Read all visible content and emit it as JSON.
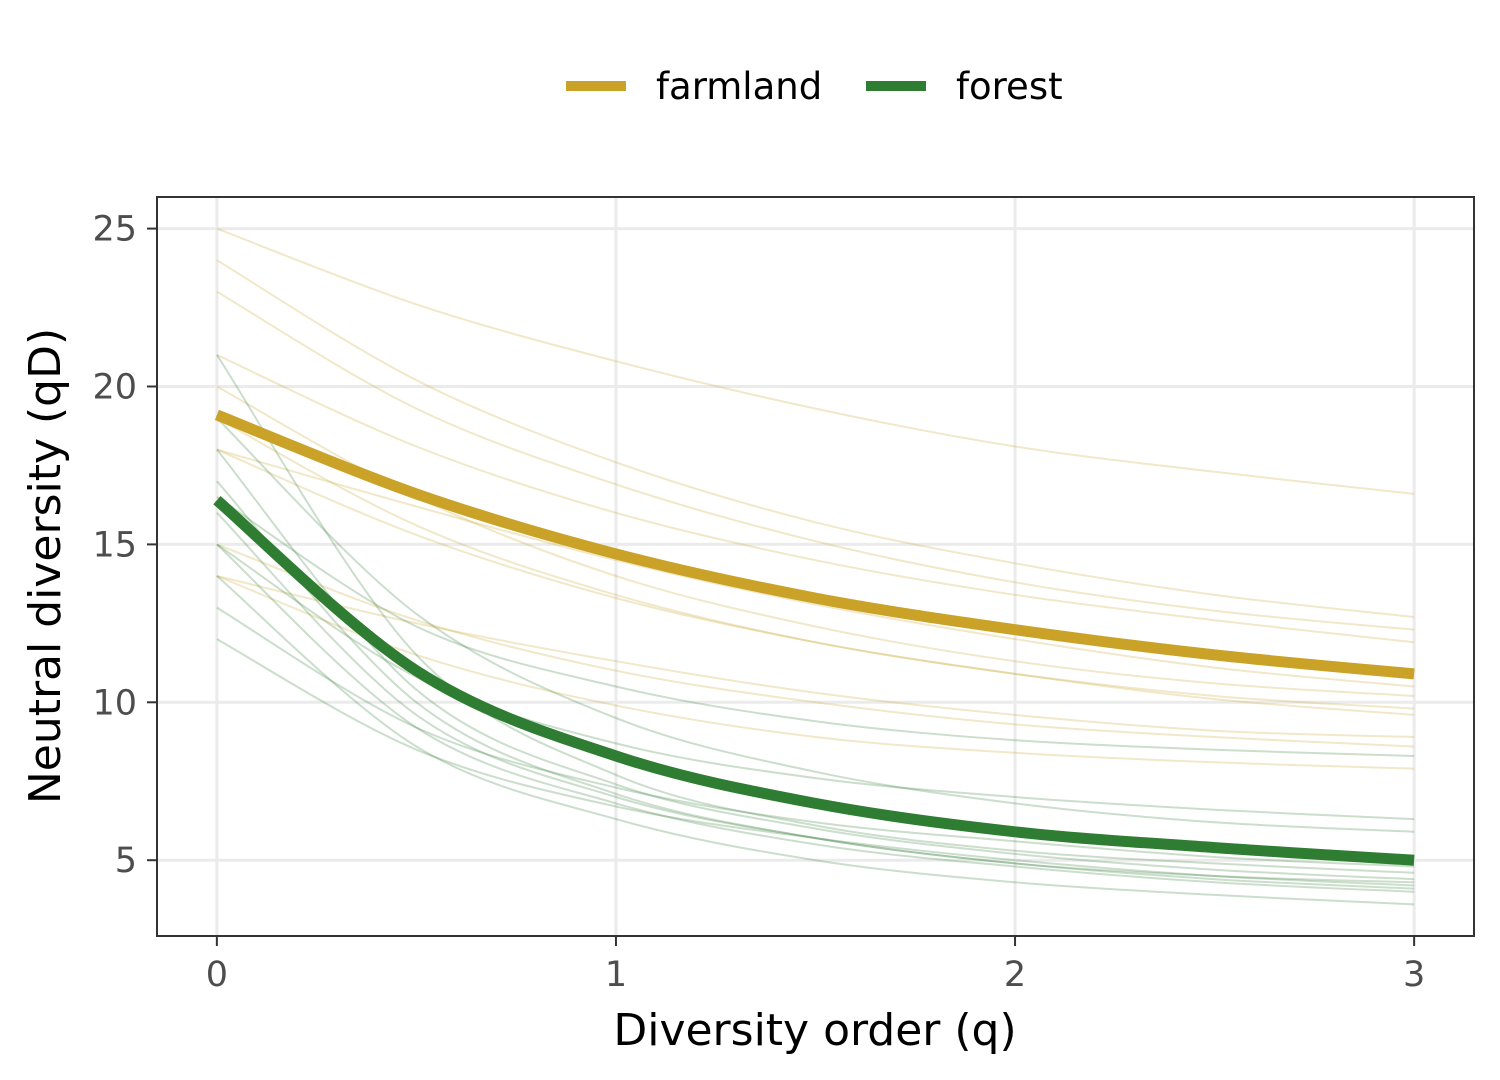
{
  "chart_data": {
    "type": "line",
    "xlabel": "Diversity order (q)",
    "ylabel": "Neutral diversity (qD)",
    "xlim": [
      -0.15,
      3.15
    ],
    "ylim": [
      2.6,
      26.0
    ],
    "x_ticks": [
      0,
      1,
      2,
      3
    ],
    "x_tick_labels": [
      "0",
      "1",
      "2",
      "3"
    ],
    "y_ticks": [
      5,
      10,
      15,
      20,
      25
    ],
    "y_tick_labels": [
      "5",
      "10",
      "15",
      "20",
      "25"
    ],
    "grid": true,
    "legend": {
      "position": "top",
      "entries": [
        {
          "label": "farmland",
          "color": "#C9A227"
        },
        {
          "label": "forest",
          "color": "#2E7D32"
        }
      ]
    },
    "x": [
      0,
      0.5,
      1,
      1.5,
      2,
      2.5,
      3
    ],
    "series": [
      {
        "name": "farmland",
        "role": "mean",
        "color": "#C9A227",
        "values": [
          19.1,
          16.6,
          14.7,
          13.3,
          12.3,
          11.5,
          10.9
        ]
      },
      {
        "name": "forest",
        "role": "mean",
        "color": "#2E7D32",
        "values": [
          16.4,
          11.0,
          8.3,
          6.8,
          5.9,
          5.4,
          5.0
        ]
      },
      {
        "group": "farmland",
        "role": "site",
        "color": "#C9A227",
        "values": [
          25.0,
          22.6,
          20.8,
          19.3,
          18.1,
          17.3,
          16.6
        ]
      },
      {
        "group": "farmland",
        "role": "site",
        "color": "#C9A227",
        "values": [
          24.0,
          20.2,
          17.6,
          15.7,
          14.4,
          13.4,
          12.7
        ]
      },
      {
        "group": "farmland",
        "role": "site",
        "color": "#C9A227",
        "values": [
          23.0,
          19.3,
          16.9,
          15.1,
          13.8,
          12.9,
          12.3
        ]
      },
      {
        "group": "farmland",
        "role": "site",
        "color": "#C9A227",
        "values": [
          21.0,
          18.1,
          16.0,
          14.5,
          13.4,
          12.6,
          11.9
        ]
      },
      {
        "group": "farmland",
        "role": "site",
        "color": "#C9A227",
        "values": [
          20.0,
          16.5,
          14.0,
          12.4,
          11.3,
          10.6,
          10.2
        ]
      },
      {
        "group": "farmland",
        "role": "site",
        "color": "#C9A227",
        "values": [
          19.0,
          15.6,
          13.4,
          11.9,
          10.9,
          10.2,
          9.8
        ]
      },
      {
        "group": "farmland",
        "role": "site",
        "color": "#C9A227",
        "values": [
          18.0,
          16.2,
          14.5,
          13.1,
          12.0,
          11.1,
          10.5
        ]
      },
      {
        "group": "farmland",
        "role": "site",
        "color": "#C9A227",
        "values": [
          18.0,
          15.3,
          13.3,
          11.9,
          10.9,
          10.1,
          9.6
        ]
      },
      {
        "group": "farmland",
        "role": "site",
        "color": "#C9A227",
        "values": [
          15.0,
          12.6,
          11.0,
          10.0,
          9.3,
          8.9,
          8.6
        ]
      },
      {
        "group": "farmland",
        "role": "site",
        "color": "#C9A227",
        "values": [
          14.0,
          12.5,
          11.3,
          10.3,
          9.6,
          9.1,
          8.9
        ]
      },
      {
        "group": "farmland",
        "role": "site",
        "color": "#C9A227",
        "values": [
          14.0,
          11.5,
          9.9,
          8.9,
          8.4,
          8.1,
          7.9
        ]
      },
      {
        "group": "forest",
        "role": "site",
        "color": "#2E7D32",
        "values": [
          21.0,
          11.5,
          7.7,
          6.1,
          5.3,
          4.9,
          4.6
        ]
      },
      {
        "group": "forest",
        "role": "site",
        "color": "#2E7D32",
        "values": [
          19.0,
          12.8,
          9.5,
          7.8,
          6.8,
          6.2,
          5.9
        ]
      },
      {
        "group": "forest",
        "role": "site",
        "color": "#2E7D32",
        "values": [
          18.0,
          10.4,
          7.4,
          6.0,
          5.2,
          4.7,
          4.4
        ]
      },
      {
        "group": "forest",
        "role": "site",
        "color": "#2E7D32",
        "values": [
          17.0,
          10.0,
          7.1,
          5.7,
          4.9,
          4.4,
          4.1
        ]
      },
      {
        "group": "forest",
        "role": "site",
        "color": "#2E7D32",
        "values": [
          16.5,
          12.4,
          10.5,
          9.4,
          8.8,
          8.5,
          8.3
        ]
      },
      {
        "group": "forest",
        "role": "site",
        "color": "#2E7D32",
        "values": [
          16.0,
          9.6,
          7.0,
          5.7,
          4.9,
          4.5,
          4.3
        ]
      },
      {
        "group": "forest",
        "role": "site",
        "color": "#2E7D32",
        "values": [
          15.0,
          9.2,
          6.8,
          5.5,
          4.8,
          4.3,
          4.0
        ]
      },
      {
        "group": "forest",
        "role": "site",
        "color": "#2E7D32",
        "values": [
          15.0,
          10.8,
          8.7,
          7.6,
          7.0,
          6.6,
          6.3
        ]
      },
      {
        "group": "forest",
        "role": "site",
        "color": "#2E7D32",
        "values": [
          14.0,
          8.6,
          6.3,
          5.0,
          4.3,
          3.9,
          3.6
        ]
      },
      {
        "group": "forest",
        "role": "site",
        "color": "#2E7D32",
        "values": [
          13.0,
          9.2,
          7.3,
          6.2,
          5.6,
          5.1,
          4.8
        ]
      },
      {
        "group": "forest",
        "role": "site",
        "color": "#2E7D32",
        "values": [
          12.0,
          8.5,
          6.7,
          5.7,
          5.0,
          4.5,
          4.2
        ]
      }
    ]
  }
}
